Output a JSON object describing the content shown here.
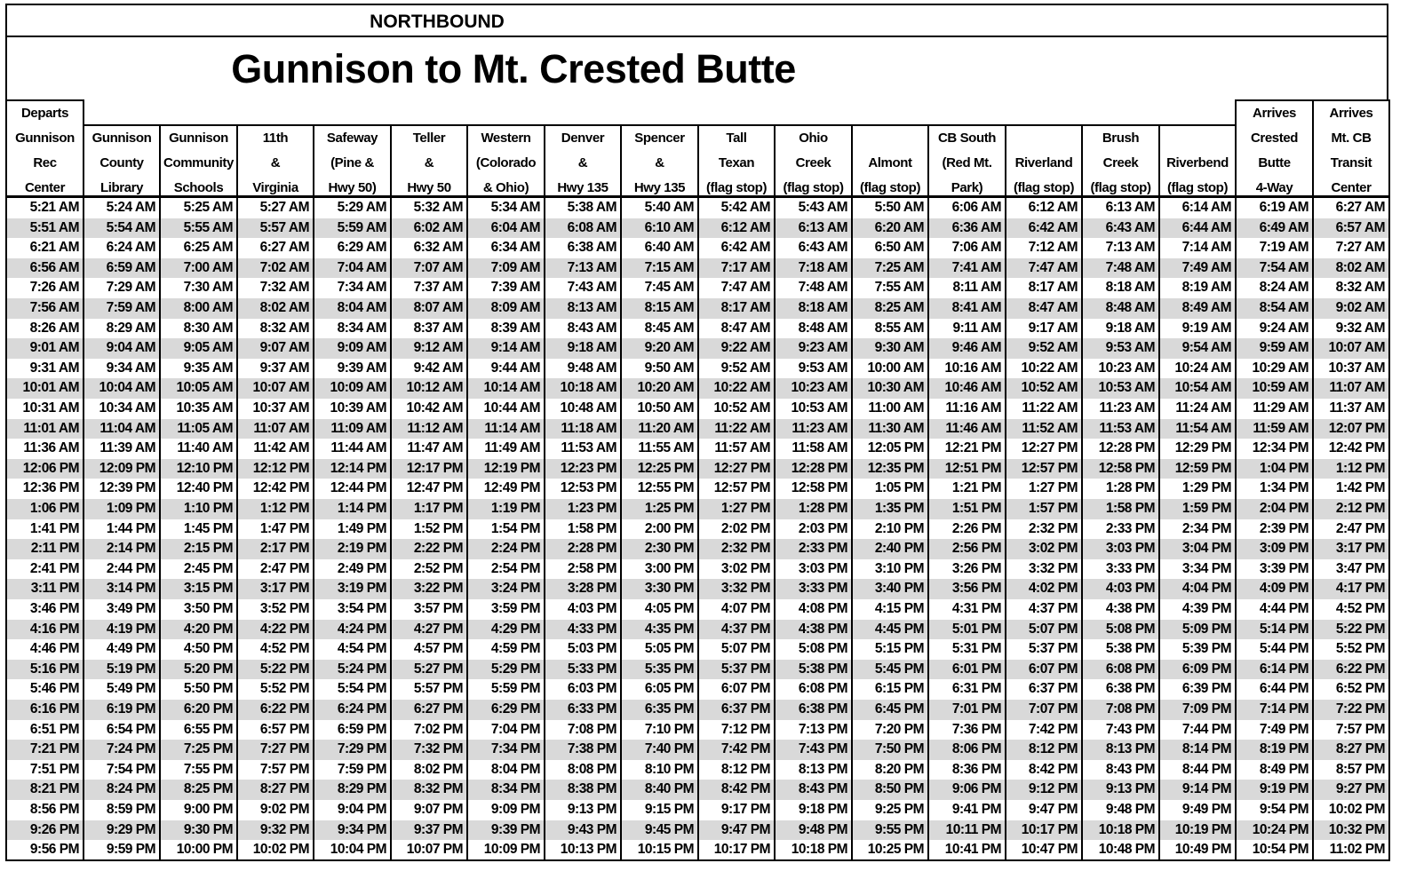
{
  "direction": "NORTHBOUND",
  "title": "Gunnison to Mt. Crested Butte",
  "columns": [
    [
      "Departs",
      "Gunnison",
      "Rec",
      "Center"
    ],
    [
      "Gunnison",
      "County",
      "Library"
    ],
    [
      "Gunnison",
      "Community",
      "Schools"
    ],
    [
      "11th",
      "&",
      "Virginia"
    ],
    [
      "Safeway",
      "(Pine &",
      "Hwy 50)"
    ],
    [
      "Teller",
      "&",
      "Hwy 50"
    ],
    [
      "Western",
      "(Colorado",
      "& Ohio)"
    ],
    [
      "Denver",
      "&",
      "Hwy 135"
    ],
    [
      "Spencer",
      "&",
      "Hwy 135"
    ],
    [
      "Tall",
      "Texan",
      "(flag stop)"
    ],
    [
      "Ohio",
      "Creek",
      "(flag stop)"
    ],
    [
      "",
      "Almont",
      "(flag stop)"
    ],
    [
      "CB South",
      "(Red Mt.",
      "Park)"
    ],
    [
      "",
      "Riverland",
      "(flag stop)"
    ],
    [
      "Brush",
      "Creek",
      "(flag stop)"
    ],
    [
      "",
      "Riverbend",
      "(flag stop)"
    ],
    [
      "Arrives",
      "Crested",
      "Butte",
      "4-Way"
    ],
    [
      "Arrives",
      "Mt. CB",
      "Transit",
      "Center"
    ]
  ],
  "colors": {
    "alt_row": "#d9d9d9",
    "border": "#000000"
  },
  "rows": [
    [
      "5:21 AM",
      "5:24 AM",
      "5:25 AM",
      "5:27 AM",
      "5:29 AM",
      "5:32 AM",
      "5:34 AM",
      "5:38 AM",
      "5:40 AM",
      "5:42 AM",
      "5:43 AM",
      "5:50 AM",
      "6:06 AM",
      "6:12 AM",
      "6:13 AM",
      "6:14 AM",
      "6:19 AM",
      "6:27 AM"
    ],
    [
      "5:51 AM",
      "5:54 AM",
      "5:55 AM",
      "5:57 AM",
      "5:59 AM",
      "6:02 AM",
      "6:04 AM",
      "6:08 AM",
      "6:10 AM",
      "6:12 AM",
      "6:13 AM",
      "6:20 AM",
      "6:36 AM",
      "6:42 AM",
      "6:43 AM",
      "6:44 AM",
      "6:49 AM",
      "6:57 AM"
    ],
    [
      "6:21 AM",
      "6:24 AM",
      "6:25 AM",
      "6:27 AM",
      "6:29 AM",
      "6:32 AM",
      "6:34 AM",
      "6:38 AM",
      "6:40 AM",
      "6:42 AM",
      "6:43 AM",
      "6:50 AM",
      "7:06 AM",
      "7:12 AM",
      "7:13 AM",
      "7:14 AM",
      "7:19 AM",
      "7:27 AM"
    ],
    [
      "6:56 AM",
      "6:59 AM",
      "7:00 AM",
      "7:02 AM",
      "7:04 AM",
      "7:07 AM",
      "7:09 AM",
      "7:13 AM",
      "7:15 AM",
      "7:17 AM",
      "7:18 AM",
      "7:25 AM",
      "7:41 AM",
      "7:47 AM",
      "7:48 AM",
      "7:49 AM",
      "7:54 AM",
      "8:02 AM"
    ],
    [
      "7:26 AM",
      "7:29 AM",
      "7:30 AM",
      "7:32 AM",
      "7:34 AM",
      "7:37 AM",
      "7:39 AM",
      "7:43 AM",
      "7:45 AM",
      "7:47 AM",
      "7:48 AM",
      "7:55 AM",
      "8:11 AM",
      "8:17 AM",
      "8:18 AM",
      "8:19 AM",
      "8:24 AM",
      "8:32 AM"
    ],
    [
      "7:56 AM",
      "7:59 AM",
      "8:00 AM",
      "8:02 AM",
      "8:04 AM",
      "8:07 AM",
      "8:09 AM",
      "8:13 AM",
      "8:15 AM",
      "8:17 AM",
      "8:18 AM",
      "8:25 AM",
      "8:41 AM",
      "8:47 AM",
      "8:48 AM",
      "8:49 AM",
      "8:54 AM",
      "9:02 AM"
    ],
    [
      "8:26 AM",
      "8:29 AM",
      "8:30 AM",
      "8:32 AM",
      "8:34 AM",
      "8:37 AM",
      "8:39 AM",
      "8:43 AM",
      "8:45 AM",
      "8:47 AM",
      "8:48 AM",
      "8:55 AM",
      "9:11 AM",
      "9:17 AM",
      "9:18 AM",
      "9:19 AM",
      "9:24 AM",
      "9:32 AM"
    ],
    [
      "9:01 AM",
      "9:04 AM",
      "9:05 AM",
      "9:07 AM",
      "9:09 AM",
      "9:12 AM",
      "9:14 AM",
      "9:18 AM",
      "9:20 AM",
      "9:22 AM",
      "9:23 AM",
      "9:30 AM",
      "9:46 AM",
      "9:52 AM",
      "9:53 AM",
      "9:54 AM",
      "9:59 AM",
      "10:07 AM"
    ],
    [
      "9:31 AM",
      "9:34 AM",
      "9:35 AM",
      "9:37 AM",
      "9:39 AM",
      "9:42 AM",
      "9:44 AM",
      "9:48 AM",
      "9:50 AM",
      "9:52 AM",
      "9:53 AM",
      "10:00 AM",
      "10:16 AM",
      "10:22 AM",
      "10:23 AM",
      "10:24 AM",
      "10:29 AM",
      "10:37 AM"
    ],
    [
      "10:01 AM",
      "10:04 AM",
      "10:05 AM",
      "10:07 AM",
      "10:09 AM",
      "10:12 AM",
      "10:14 AM",
      "10:18 AM",
      "10:20 AM",
      "10:22 AM",
      "10:23 AM",
      "10:30 AM",
      "10:46 AM",
      "10:52 AM",
      "10:53 AM",
      "10:54 AM",
      "10:59 AM",
      "11:07 AM"
    ],
    [
      "10:31 AM",
      "10:34 AM",
      "10:35 AM",
      "10:37 AM",
      "10:39 AM",
      "10:42 AM",
      "10:44 AM",
      "10:48 AM",
      "10:50 AM",
      "10:52 AM",
      "10:53 AM",
      "11:00 AM",
      "11:16 AM",
      "11:22 AM",
      "11:23 AM",
      "11:24 AM",
      "11:29 AM",
      "11:37 AM"
    ],
    [
      "11:01 AM",
      "11:04 AM",
      "11:05 AM",
      "11:07 AM",
      "11:09 AM",
      "11:12 AM",
      "11:14 AM",
      "11:18 AM",
      "11:20 AM",
      "11:22 AM",
      "11:23 AM",
      "11:30 AM",
      "11:46 AM",
      "11:52 AM",
      "11:53 AM",
      "11:54 AM",
      "11:59 AM",
      "12:07 PM"
    ],
    [
      "11:36 AM",
      "11:39 AM",
      "11:40 AM",
      "11:42 AM",
      "11:44 AM",
      "11:47 AM",
      "11:49 AM",
      "11:53 AM",
      "11:55 AM",
      "11:57 AM",
      "11:58 AM",
      "12:05 PM",
      "12:21 PM",
      "12:27 PM",
      "12:28 PM",
      "12:29 PM",
      "12:34 PM",
      "12:42 PM"
    ],
    [
      "12:06 PM",
      "12:09 PM",
      "12:10 PM",
      "12:12 PM",
      "12:14 PM",
      "12:17 PM",
      "12:19 PM",
      "12:23 PM",
      "12:25 PM",
      "12:27 PM",
      "12:28 PM",
      "12:35 PM",
      "12:51 PM",
      "12:57 PM",
      "12:58 PM",
      "12:59 PM",
      "1:04 PM",
      "1:12 PM"
    ],
    [
      "12:36 PM",
      "12:39 PM",
      "12:40 PM",
      "12:42 PM",
      "12:44 PM",
      "12:47 PM",
      "12:49 PM",
      "12:53 PM",
      "12:55 PM",
      "12:57 PM",
      "12:58 PM",
      "1:05 PM",
      "1:21 PM",
      "1:27 PM",
      "1:28 PM",
      "1:29 PM",
      "1:34 PM",
      "1:42 PM"
    ],
    [
      "1:06 PM",
      "1:09 PM",
      "1:10 PM",
      "1:12 PM",
      "1:14 PM",
      "1:17 PM",
      "1:19 PM",
      "1:23 PM",
      "1:25 PM",
      "1:27 PM",
      "1:28 PM",
      "1:35 PM",
      "1:51 PM",
      "1:57 PM",
      "1:58 PM",
      "1:59 PM",
      "2:04 PM",
      "2:12 PM"
    ],
    [
      "1:41 PM",
      "1:44 PM",
      "1:45 PM",
      "1:47 PM",
      "1:49 PM",
      "1:52 PM",
      "1:54 PM",
      "1:58 PM",
      "2:00 PM",
      "2:02 PM",
      "2:03 PM",
      "2:10 PM",
      "2:26 PM",
      "2:32 PM",
      "2:33 PM",
      "2:34 PM",
      "2:39 PM",
      "2:47 PM"
    ],
    [
      "2:11 PM",
      "2:14 PM",
      "2:15 PM",
      "2:17 PM",
      "2:19 PM",
      "2:22 PM",
      "2:24 PM",
      "2:28 PM",
      "2:30 PM",
      "2:32 PM",
      "2:33 PM",
      "2:40 PM",
      "2:56 PM",
      "3:02 PM",
      "3:03 PM",
      "3:04 PM",
      "3:09 PM",
      "3:17 PM"
    ],
    [
      "2:41 PM",
      "2:44 PM",
      "2:45 PM",
      "2:47 PM",
      "2:49 PM",
      "2:52 PM",
      "2:54 PM",
      "2:58 PM",
      "3:00 PM",
      "3:02 PM",
      "3:03 PM",
      "3:10 PM",
      "3:26 PM",
      "3:32 PM",
      "3:33 PM",
      "3:34 PM",
      "3:39 PM",
      "3:47 PM"
    ],
    [
      "3:11 PM",
      "3:14 PM",
      "3:15 PM",
      "3:17 PM",
      "3:19 PM",
      "3:22 PM",
      "3:24 PM",
      "3:28 PM",
      "3:30 PM",
      "3:32 PM",
      "3:33 PM",
      "3:40 PM",
      "3:56 PM",
      "4:02 PM",
      "4:03 PM",
      "4:04 PM",
      "4:09 PM",
      "4:17 PM"
    ],
    [
      "3:46 PM",
      "3:49 PM",
      "3:50 PM",
      "3:52 PM",
      "3:54 PM",
      "3:57 PM",
      "3:59 PM",
      "4:03 PM",
      "4:05 PM",
      "4:07 PM",
      "4:08 PM",
      "4:15 PM",
      "4:31 PM",
      "4:37 PM",
      "4:38 PM",
      "4:39 PM",
      "4:44 PM",
      "4:52 PM"
    ],
    [
      "4:16 PM",
      "4:19 PM",
      "4:20 PM",
      "4:22 PM",
      "4:24 PM",
      "4:27 PM",
      "4:29 PM",
      "4:33 PM",
      "4:35 PM",
      "4:37 PM",
      "4:38 PM",
      "4:45 PM",
      "5:01 PM",
      "5:07 PM",
      "5:08 PM",
      "5:09 PM",
      "5:14 PM",
      "5:22 PM"
    ],
    [
      "4:46 PM",
      "4:49 PM",
      "4:50 PM",
      "4:52 PM",
      "4:54 PM",
      "4:57 PM",
      "4:59 PM",
      "5:03 PM",
      "5:05 PM",
      "5:07 PM",
      "5:08 PM",
      "5:15 PM",
      "5:31 PM",
      "5:37 PM",
      "5:38 PM",
      "5:39 PM",
      "5:44 PM",
      "5:52 PM"
    ],
    [
      "5:16 PM",
      "5:19 PM",
      "5:20 PM",
      "5:22 PM",
      "5:24 PM",
      "5:27 PM",
      "5:29 PM",
      "5:33 PM",
      "5:35 PM",
      "5:37 PM",
      "5:38 PM",
      "5:45 PM",
      "6:01 PM",
      "6:07 PM",
      "6:08 PM",
      "6:09 PM",
      "6:14 PM",
      "6:22 PM"
    ],
    [
      "5:46 PM",
      "5:49 PM",
      "5:50 PM",
      "5:52 PM",
      "5:54 PM",
      "5:57 PM",
      "5:59 PM",
      "6:03 PM",
      "6:05 PM",
      "6:07 PM",
      "6:08 PM",
      "6:15 PM",
      "6:31 PM",
      "6:37 PM",
      "6:38 PM",
      "6:39 PM",
      "6:44 PM",
      "6:52 PM"
    ],
    [
      "6:16 PM",
      "6:19 PM",
      "6:20 PM",
      "6:22 PM",
      "6:24 PM",
      "6:27 PM",
      "6:29 PM",
      "6:33 PM",
      "6:35 PM",
      "6:37 PM",
      "6:38 PM",
      "6:45 PM",
      "7:01 PM",
      "7:07 PM",
      "7:08 PM",
      "7:09 PM",
      "7:14 PM",
      "7:22 PM"
    ],
    [
      "6:51 PM",
      "6:54 PM",
      "6:55 PM",
      "6:57 PM",
      "6:59 PM",
      "7:02 PM",
      "7:04 PM",
      "7:08 PM",
      "7:10 PM",
      "7:12 PM",
      "7:13 PM",
      "7:20 PM",
      "7:36 PM",
      "7:42 PM",
      "7:43 PM",
      "7:44 PM",
      "7:49 PM",
      "7:57 PM"
    ],
    [
      "7:21 PM",
      "7:24 PM",
      "7:25 PM",
      "7:27 PM",
      "7:29 PM",
      "7:32 PM",
      "7:34 PM",
      "7:38 PM",
      "7:40 PM",
      "7:42 PM",
      "7:43 PM",
      "7:50 PM",
      "8:06 PM",
      "8:12 PM",
      "8:13 PM",
      "8:14 PM",
      "8:19 PM",
      "8:27 PM"
    ],
    [
      "7:51 PM",
      "7:54 PM",
      "7:55 PM",
      "7:57 PM",
      "7:59 PM",
      "8:02 PM",
      "8:04 PM",
      "8:08 PM",
      "8:10 PM",
      "8:12 PM",
      "8:13 PM",
      "8:20 PM",
      "8:36 PM",
      "8:42 PM",
      "8:43 PM",
      "8:44 PM",
      "8:49 PM",
      "8:57 PM"
    ],
    [
      "8:21 PM",
      "8:24 PM",
      "8:25 PM",
      "8:27 PM",
      "8:29 PM",
      "8:32 PM",
      "8:34 PM",
      "8:38 PM",
      "8:40 PM",
      "8:42 PM",
      "8:43 PM",
      "8:50 PM",
      "9:06 PM",
      "9:12 PM",
      "9:13 PM",
      "9:14 PM",
      "9:19 PM",
      "9:27 PM"
    ],
    [
      "8:56 PM",
      "8:59 PM",
      "9:00 PM",
      "9:02 PM",
      "9:04 PM",
      "9:07 PM",
      "9:09 PM",
      "9:13 PM",
      "9:15 PM",
      "9:17 PM",
      "9:18 PM",
      "9:25 PM",
      "9:41 PM",
      "9:47 PM",
      "9:48 PM",
      "9:49 PM",
      "9:54 PM",
      "10:02 PM"
    ],
    [
      "9:26 PM",
      "9:29 PM",
      "9:30 PM",
      "9:32 PM",
      "9:34 PM",
      "9:37 PM",
      "9:39 PM",
      "9:43 PM",
      "9:45 PM",
      "9:47 PM",
      "9:48 PM",
      "9:55 PM",
      "10:11 PM",
      "10:17 PM",
      "10:18 PM",
      "10:19 PM",
      "10:24 PM",
      "10:32 PM"
    ],
    [
      "9:56 PM",
      "9:59 PM",
      "10:00 PM",
      "10:02 PM",
      "10:04 PM",
      "10:07 PM",
      "10:09 PM",
      "10:13 PM",
      "10:15 PM",
      "10:17 PM",
      "10:18 PM",
      "10:25 PM",
      "10:41 PM",
      "10:47 PM",
      "10:48 PM",
      "10:49 PM",
      "10:54 PM",
      "11:02 PM"
    ]
  ]
}
